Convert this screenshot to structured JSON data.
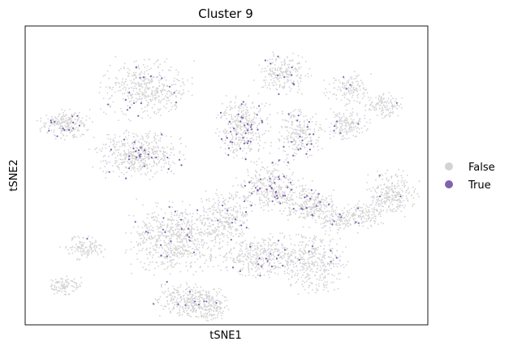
{
  "chart_data": {
    "type": "scatter",
    "title": "Cluster 9",
    "xlabel": "tSNE1",
    "ylabel": "tSNE2",
    "xticks": [],
    "yticks": [],
    "grid": false,
    "legend_placement": "right",
    "series": [
      {
        "name": "False",
        "color": "#d3d3d3"
      },
      {
        "name": "True",
        "color": "#8062ad"
      }
    ],
    "clusters_note_unused": null,
    "blobs": [
      {
        "x": 0.1,
        "y": 0.33,
        "rx": 0.06,
        "ry": 0.045,
        "n": 220,
        "true_frac": 0.05
      },
      {
        "x": 0.14,
        "y": 0.74,
        "rx": 0.05,
        "ry": 0.04,
        "n": 120,
        "true_frac": 0.02
      },
      {
        "x": 0.28,
        "y": 0.43,
        "rx": 0.1,
        "ry": 0.07,
        "n": 480,
        "true_frac": 0.05
      },
      {
        "x": 0.38,
        "y": 0.71,
        "rx": 0.11,
        "ry": 0.11,
        "n": 700,
        "true_frac": 0.03
      },
      {
        "x": 0.3,
        "y": 0.21,
        "rx": 0.1,
        "ry": 0.09,
        "n": 420,
        "true_frac": 0.03
      },
      {
        "x": 0.4,
        "y": 0.92,
        "rx": 0.07,
        "ry": 0.06,
        "n": 260,
        "true_frac": 0.02
      },
      {
        "x": 0.54,
        "y": 0.34,
        "rx": 0.06,
        "ry": 0.09,
        "n": 360,
        "true_frac": 0.1
      },
      {
        "x": 0.61,
        "y": 0.54,
        "rx": 0.08,
        "ry": 0.08,
        "n": 360,
        "true_frac": 0.08
      },
      {
        "x": 0.59,
        "y": 0.77,
        "rx": 0.09,
        "ry": 0.07,
        "n": 380,
        "true_frac": 0.04
      },
      {
        "x": 0.71,
        "y": 0.6,
        "rx": 0.06,
        "ry": 0.05,
        "n": 240,
        "true_frac": 0.05
      },
      {
        "x": 0.72,
        "y": 0.79,
        "rx": 0.07,
        "ry": 0.1,
        "n": 340,
        "true_frac": 0.02
      },
      {
        "x": 0.68,
        "y": 0.36,
        "rx": 0.05,
        "ry": 0.08,
        "n": 230,
        "true_frac": 0.05
      },
      {
        "x": 0.64,
        "y": 0.16,
        "rx": 0.06,
        "ry": 0.06,
        "n": 220,
        "true_frac": 0.04
      },
      {
        "x": 0.8,
        "y": 0.33,
        "rx": 0.05,
        "ry": 0.05,
        "n": 160,
        "true_frac": 0.02
      },
      {
        "x": 0.8,
        "y": 0.21,
        "rx": 0.05,
        "ry": 0.05,
        "n": 130,
        "true_frac": 0.02
      },
      {
        "x": 0.84,
        "y": 0.63,
        "rx": 0.05,
        "ry": 0.04,
        "n": 120,
        "true_frac": 0.01
      },
      {
        "x": 0.91,
        "y": 0.56,
        "rx": 0.06,
        "ry": 0.07,
        "n": 260,
        "true_frac": 0.01
      },
      {
        "x": 0.89,
        "y": 0.27,
        "rx": 0.04,
        "ry": 0.04,
        "n": 120,
        "true_frac": 0.01
      },
      {
        "x": 0.1,
        "y": 0.87,
        "rx": 0.04,
        "ry": 0.03,
        "n": 100,
        "true_frac": 0.01
      },
      {
        "x": 0.45,
        "y": 0.94,
        "rx": 0.05,
        "ry": 0.05,
        "n": 180,
        "true_frac": 0.01
      },
      {
        "x": 0.5,
        "y": 0.64,
        "rx": 0.06,
        "ry": 0.08,
        "n": 260,
        "true_frac": 0.03
      },
      {
        "x": 0.78,
        "y": 0.65,
        "rx": 0.05,
        "ry": 0.04,
        "n": 120,
        "true_frac": 0.05
      }
    ]
  }
}
